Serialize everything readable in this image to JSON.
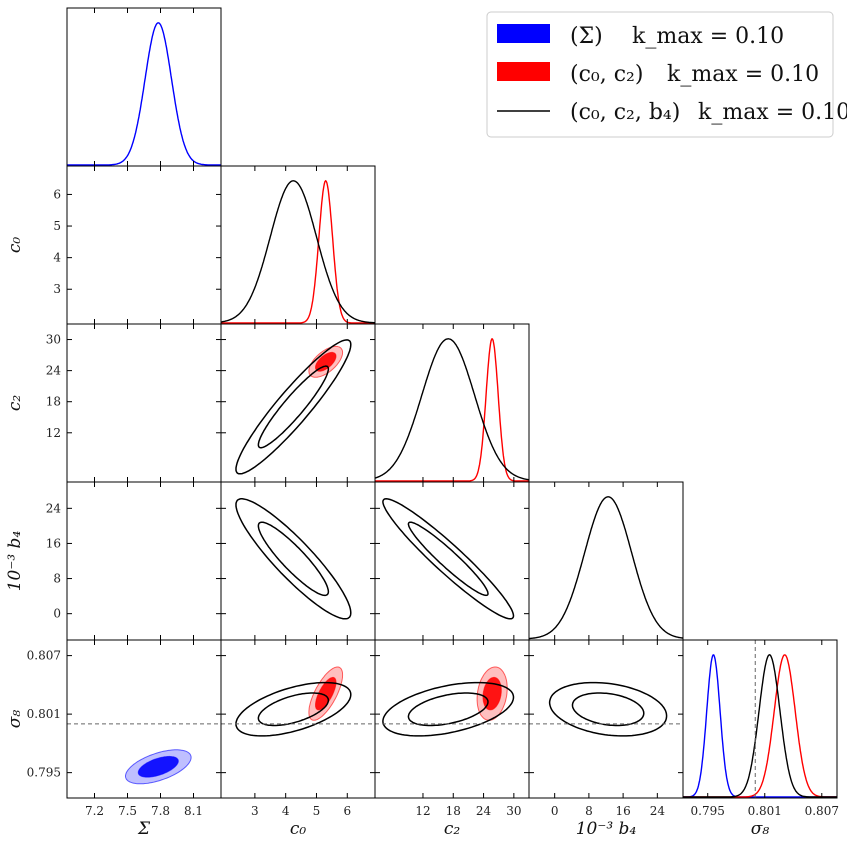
{
  "chart_data": {
    "type": "triangle-corner-plot",
    "parameters": [
      {
        "key": "Sigma",
        "label": "Σ",
        "range": [
          6.95,
          8.35
        ],
        "ticks": [
          7.2,
          7.5,
          7.8,
          8.1
        ],
        "tick_labels": [
          "7.2",
          "7.5",
          "7.8",
          "8.1"
        ]
      },
      {
        "key": "c0",
        "label": "c₀",
        "range": [
          1.9,
          6.9
        ],
        "ticks": [
          3,
          4,
          5,
          6
        ],
        "tick_labels": [
          "3",
          "4",
          "5",
          "6"
        ],
        "row_ticks": [
          3,
          4,
          5,
          6
        ],
        "row_tick_labels": [
          "3",
          "4",
          "5",
          "6"
        ]
      },
      {
        "key": "c2",
        "label": "c₂",
        "range": [
          2.5,
          33
        ],
        "ticks": [
          12,
          18,
          24,
          30
        ],
        "tick_labels": [
          "12",
          "18",
          "24",
          "30"
        ],
        "row_ticks": [
          12,
          18,
          24,
          30
        ],
        "row_tick_labels": [
          "12",
          "18",
          "24",
          "30"
        ]
      },
      {
        "key": "b4",
        "label": "10⁻³ b₄",
        "range": [
          -6,
          30
        ],
        "ticks": [
          0,
          8,
          16,
          24
        ],
        "tick_labels": [
          "0",
          "8",
          "16",
          "24"
        ],
        "row_ticks": [
          0,
          8,
          16,
          24
        ],
        "row_tick_labels": [
          "0",
          "8",
          "16",
          "24"
        ]
      },
      {
        "key": "s8",
        "label": "σ₈",
        "range": [
          0.7924,
          0.8086
        ],
        "ticks": [
          0.795,
          0.801,
          0.807
        ],
        "tick_labels": [
          "0.795",
          "0.801",
          "0.807"
        ],
        "row_ticks": [
          0.795,
          0.801,
          0.807
        ],
        "row_tick_labels": [
          "0.795",
          "0.801",
          "0.807"
        ]
      }
    ],
    "series": [
      {
        "name": "(Σ)",
        "kmax": "k_max = 0.10",
        "color": "#0000ff",
        "params": [
          "Sigma",
          "s8"
        ],
        "mean": [
          7.78,
          0.7956
        ],
        "sd": [
          0.12,
          0.0007
        ],
        "corr": 0.55
      },
      {
        "name": "(c₀, c₂)",
        "kmax": "k_max = 0.10",
        "color": "#ff0000",
        "params": [
          "c0",
          "c2",
          "s8"
        ],
        "mean": [
          5.3,
          25.7,
          0.8031
        ],
        "sd": [
          0.22,
          1.2,
          0.0011
        ],
        "corr": [
          [
            1,
            0.6,
            0.7
          ],
          [
            0.6,
            1,
            0.2
          ],
          [
            0.7,
            0.2,
            1
          ]
        ]
      },
      {
        "name": "(c₀, c₂, b₄)",
        "kmax": "k_max = 0.10",
        "color": "#000000",
        "params": [
          "c0",
          "c2",
          "b4",
          "s8"
        ],
        "mean": [
          4.25,
          17.0,
          12.5,
          0.8015
        ],
        "sd": [
          0.75,
          5.2,
          5.5,
          0.0011
        ],
        "corr": [
          [
            1,
            0.93,
            -0.9,
            0.55
          ],
          [
            0.93,
            1,
            -0.95,
            0.45
          ],
          [
            -0.9,
            -0.95,
            1,
            -0.25
          ],
          [
            0.55,
            0.45,
            -0.25,
            1
          ]
        ]
      }
    ],
    "reference_line": {
      "param": "s8",
      "value": 0.8
    },
    "legend": {
      "position": "top-right",
      "entries": [
        {
          "label": "(Σ)",
          "kmax": "k_max = 0.10",
          "style": "patch",
          "color": "#0000ff"
        },
        {
          "label": "(c₀, c₂)",
          "kmax": "k_max = 0.10",
          "style": "patch",
          "color": "#ff0000"
        },
        {
          "label": "(c₀, c₂, b₄)",
          "kmax": "k_max = 0.10",
          "style": "line",
          "color": "#000000"
        }
      ]
    }
  }
}
